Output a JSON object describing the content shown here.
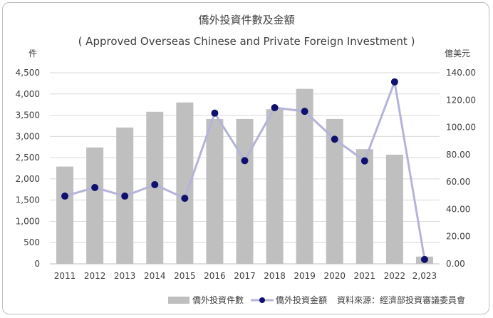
{
  "chart_data": {
    "type": "bar+line",
    "title": "僑外投資件數及金額",
    "subtitle": "( Approved Overseas Chinese and Private Foreign Investment )",
    "left_unit": "件",
    "right_unit": "億美元",
    "categories": [
      "2011",
      "2012",
      "2013",
      "2014",
      "2015",
      "2016",
      "2017",
      "2018",
      "2019",
      "2020",
      "2021",
      "2022",
      "2,023"
    ],
    "y_left": {
      "min": 0,
      "max": 4500,
      "step": 500,
      "ticks": [
        "0",
        "500",
        "1,000",
        "1,500",
        "2,000",
        "2,500",
        "3,000",
        "3,500",
        "4,000",
        "4,500"
      ]
    },
    "y_right": {
      "min": 0,
      "max": 140,
      "step": 20,
      "ticks": [
        "0.00",
        "20.00",
        "40.00",
        "60.00",
        "80.00",
        "100.00",
        "120.00",
        "140.00"
      ]
    },
    "series": [
      {
        "name": "僑外投資件數",
        "type": "bar",
        "axis": "left",
        "color": "#bfbfbf",
        "values": [
          2290,
          2740,
          3210,
          3580,
          3800,
          3410,
          3410,
          3640,
          4120,
          3410,
          2700,
          2570,
          170
        ]
      },
      {
        "name": "僑外投資金額",
        "type": "line",
        "axis": "right",
        "line_color": "#b4b4d8",
        "marker_color": "#10106e",
        "values": [
          49.6,
          55.9,
          49.6,
          58.0,
          48.0,
          110.4,
          75.6,
          114.4,
          111.7,
          91.3,
          75.4,
          133.3,
          3.2
        ]
      }
    ],
    "legend_position": "bottom-right",
    "source": "資料來源：經濟部投資審議委員會"
  }
}
